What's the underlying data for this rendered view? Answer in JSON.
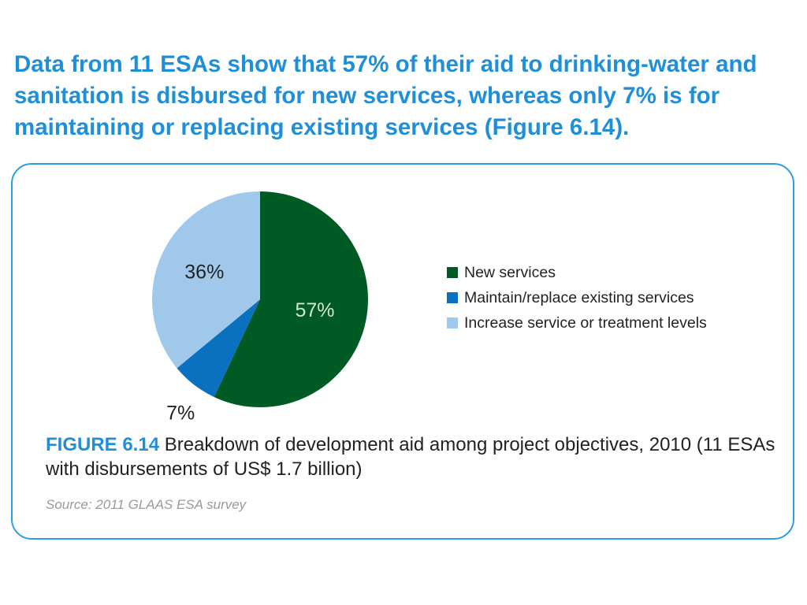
{
  "headline": "Data from 11 ESAs show that 57% of their aid to drinking-water and sanitation is disbursed for new services, whereas only 7% is for maintaining or replacing existing services (Figure 6.14).",
  "figure": {
    "label": "FIGURE 6.14",
    "caption": " Breakdown of development aid among project objectives, 2010 (11 ESAs with disbursements of US$ 1.7 billion)",
    "source": "Source: 2011 GLAAS ESA survey"
  },
  "chart_data": {
    "type": "pie",
    "title": "",
    "legend_position": "right",
    "slices": [
      {
        "name": "New services",
        "value": 57,
        "label": "57%",
        "color": "#005a24"
      },
      {
        "name": "Maintain/replace existing services",
        "value": 7,
        "label": "7%",
        "color": "#0a71c1"
      },
      {
        "name": "Increase service or treatment levels",
        "value": 36,
        "label": "36%",
        "color": "#a0c8ea"
      }
    ]
  }
}
